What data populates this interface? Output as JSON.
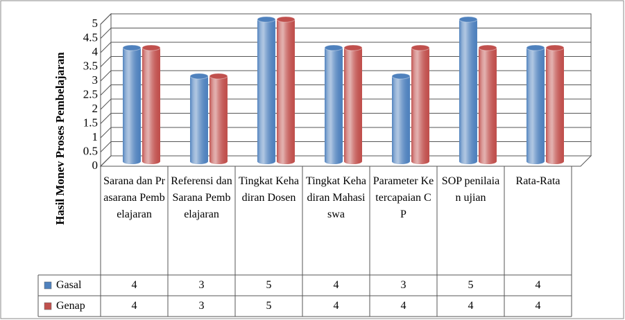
{
  "chart_data": {
    "type": "bar",
    "y_label": "Hasil Monev  Proses Pembelajaran",
    "categories": [
      "Sarana dan Prasarana Pembelajaran",
      "Referensi dan Sarana Pembelajaran",
      "Tingkat Kehadiran Dosen",
      "Tingkat Kehadiran Mahasiswa",
      "Parameter Ketercapaian CP",
      "SOP penilaian ujian",
      "Rata-Rata"
    ],
    "series": [
      {
        "name": "Gasal",
        "color": "#4f81bd",
        "values": [
          4,
          3,
          5,
          4,
          3,
          5,
          4
        ]
      },
      {
        "name": "Genap",
        "color": "#c0504d",
        "values": [
          4,
          3,
          5,
          4,
          4,
          4,
          4
        ]
      }
    ],
    "ylim": [
      0,
      5
    ],
    "yticks": [
      0,
      0.5,
      1,
      1.5,
      2,
      2.5,
      3,
      3.5,
      4,
      4.5,
      5
    ],
    "grid": true
  }
}
